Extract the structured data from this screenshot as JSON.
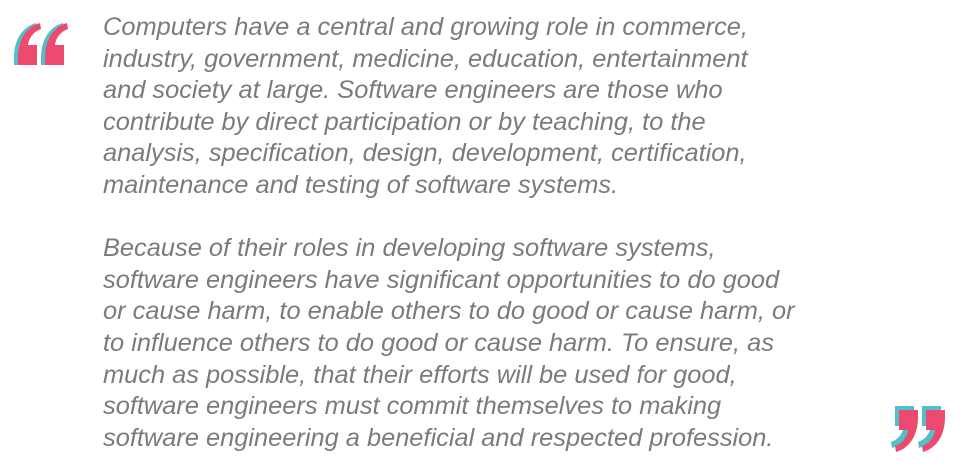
{
  "colors": {
    "text": "#7b7b7b",
    "quote_pink": "#ec4a6f",
    "quote_teal": "#52c0cc"
  },
  "icons": {
    "open_quote": "open-quote-icon",
    "close_quote": "close-quote-icon"
  },
  "quote": {
    "paragraphs": [
      {
        "lines": [
          "Computers have a central and growing role in commerce,",
          "industry, government, medicine, education, entertainment",
          "and society at large. Software engineers are those who",
          "contribute by direct participation or by teaching, to the",
          "analysis, specification, design, development, certification,",
          "maintenance and testing of software systems."
        ]
      },
      {
        "lines": [
          "Because of their roles in developing software systems,",
          "software engineers have significant opportunities to do good",
          "or cause harm, to enable others to do good or cause harm, or",
          "to influence others to do good or cause harm. To ensure, as",
          "much as possible, that their efforts will be used for good,",
          "software engineers must commit themselves to making",
          "software engineering a beneficial and respected profession."
        ]
      }
    ]
  }
}
